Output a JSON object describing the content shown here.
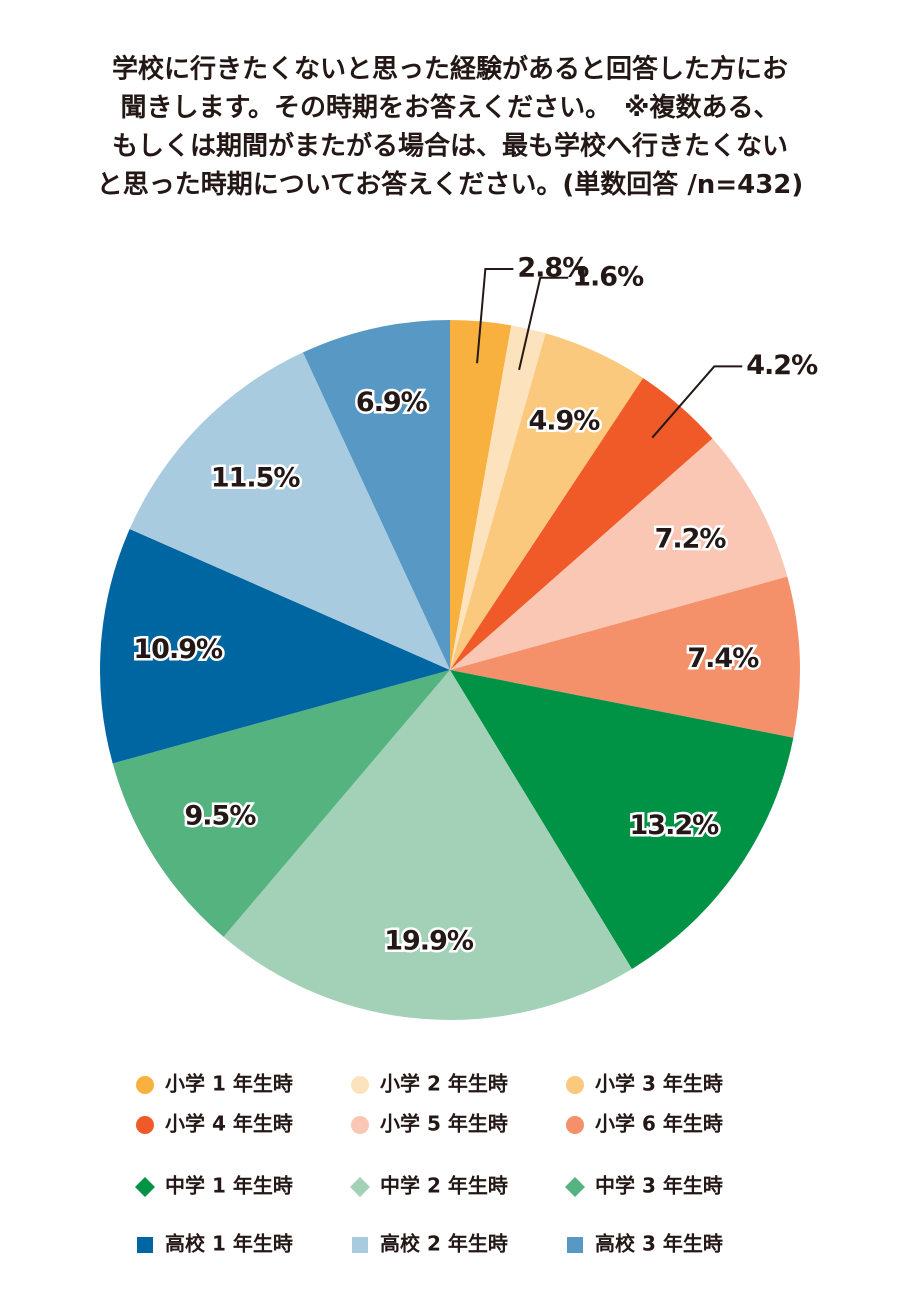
{
  "chart_data": {
    "type": "pie",
    "title": [
      "学校に行きたくないと思った経験があると回答した方にお",
      "聞きします。その時期をお答えください。　※複数ある、",
      "もしくは期間がまたがる場合は、最も学校へ行きたくない",
      "と思った時期についてお答えください。(単数回答 /n=432)"
    ],
    "categories": [
      "小学 1 年生時",
      "小学 2 年生時",
      "小学 3 年生時",
      "小学 4 年生時",
      "小学 5 年生時",
      "小学 6 年生時",
      "中学 1 年生時",
      "中学 2 年生時",
      "中学 3 年生時",
      "高校 1 年生時",
      "高校 2 年生時",
      "高校 3 年生時"
    ],
    "values": [
      2.8,
      1.6,
      4.9,
      4.2,
      7.2,
      7.4,
      13.2,
      19.9,
      9.5,
      10.9,
      11.5,
      6.9
    ],
    "value_labels": [
      "2.8%",
      "1.6%",
      "4.9%",
      "4.2%",
      "7.2%",
      "7.4%",
      "13.2%",
      "19.9%",
      "9.5%",
      "10.9%",
      "11.5%",
      "6.9%"
    ],
    "colors": [
      "#f8b13f",
      "#fde3bd",
      "#fbc97e",
      "#f05a28",
      "#f9c7b4",
      "#f4906a",
      "#009245",
      "#a3d1b7",
      "#55b380",
      "#0066a1",
      "#a9cbe0",
      "#5799c4"
    ],
    "legend_markers": [
      "circle",
      "circle",
      "circle",
      "circle",
      "circle",
      "circle",
      "diamond",
      "diamond",
      "diamond",
      "square",
      "square",
      "square"
    ]
  }
}
